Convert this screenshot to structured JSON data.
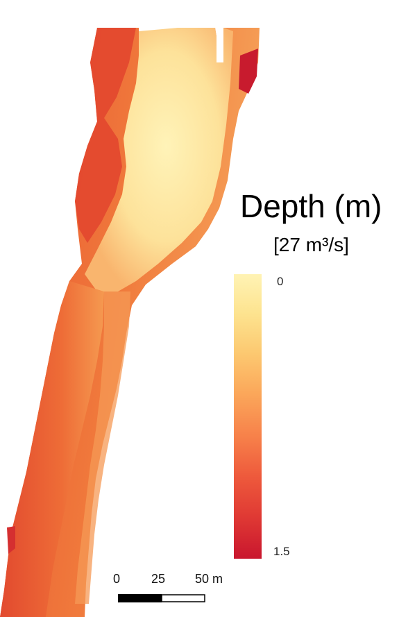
{
  "legend": {
    "title": "Depth (m)",
    "subtitle": "[27 m³/s]",
    "max_label": "0",
    "min_label": "1.5",
    "colors": [
      "#fff3b4",
      "#fde38f",
      "#fcc870",
      "#fba75a",
      "#f7814a",
      "#ee5a3c",
      "#e03a34",
      "#c9162e"
    ]
  },
  "scale_bar": {
    "labels": [
      "0",
      "25",
      "50 m"
    ]
  }
}
